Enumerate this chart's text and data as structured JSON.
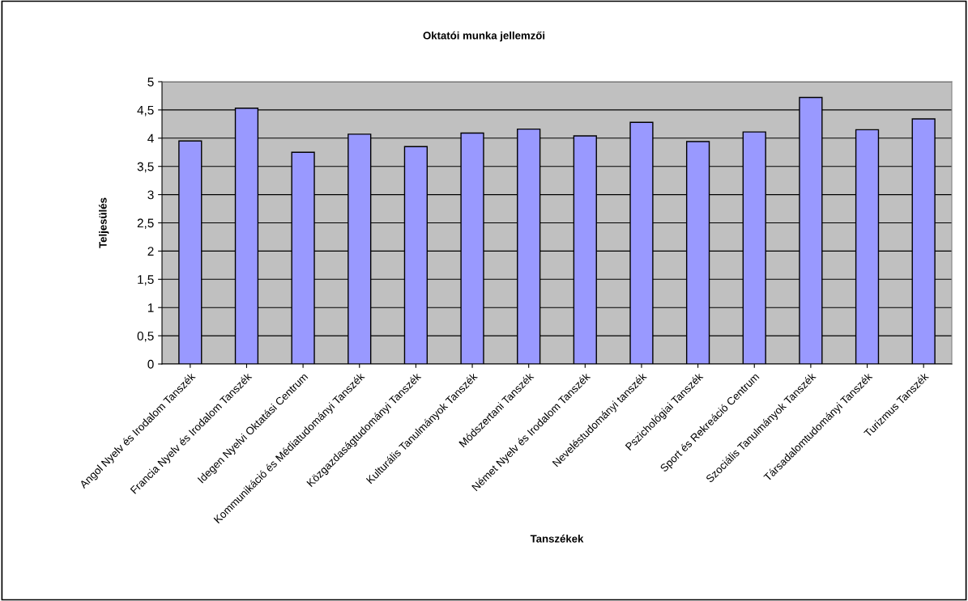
{
  "chart_data": {
    "type": "bar",
    "title": "Oktatói munka jellemzői",
    "xlabel": "Tanszékek",
    "ylabel": "Teljesülés",
    "categories": [
      "Angol Nyelv és Irodalom Tanszék",
      "Francia Nyelv és Irodalom Tanszék",
      "Idegen Nyelvi Oktatási Centrum",
      "Kommunikáció és Médiatudományi Tanszék",
      "Közgazdaságtudományi Tanszék",
      "Kulturális Tanulmányok Tanszék",
      "Módszertani Tanszék",
      "Német Nyelv és Irodalom Tanszék",
      "Neveléstudományi tanszék",
      "Pszichológiai Tanszék",
      "Sport és Rekreáció Centrum",
      "Szociális Tanulmányok Tanszék",
      "Társadalomtudományi Tanszék",
      "Turizmus Tanszék"
    ],
    "values": [
      3.95,
      4.53,
      3.75,
      4.07,
      3.85,
      4.09,
      4.16,
      4.04,
      4.28,
      3.94,
      4.11,
      4.72,
      4.15,
      4.34
    ],
    "color": "#9999ff",
    "ylim": [
      0,
      5
    ],
    "yticks": [
      0,
      {
        "value": 0.5,
        "label": "0,5"
      },
      1,
      {
        "value": 1.5,
        "label": "1,5"
      },
      2,
      {
        "value": 2.5,
        "label": "2,5"
      },
      3,
      {
        "value": 3.5,
        "label": "3,5"
      },
      4,
      {
        "value": 4.5,
        "label": "4,5"
      },
      5
    ],
    "grid": "y",
    "legend": false
  }
}
